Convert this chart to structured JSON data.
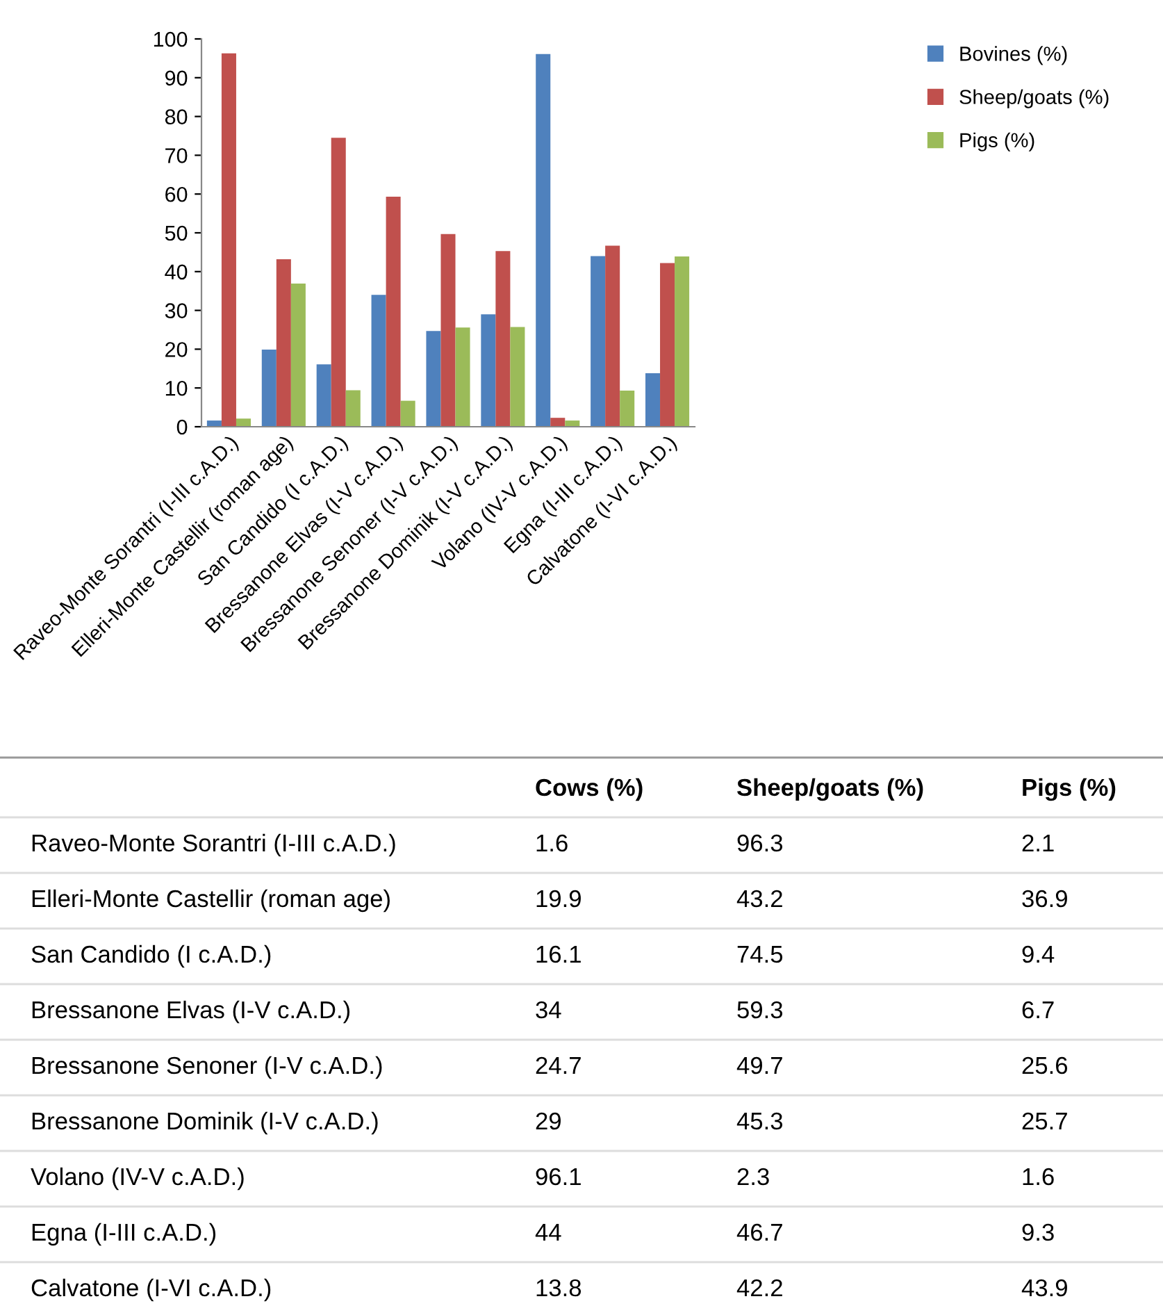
{
  "chart_data": [
    {
      "type": "bar",
      "categories": [
        "Raveo-Monte Sorantri (I-III c.A.D.)",
        "Elleri-Monte Castellir (roman age)",
        "San Candido (I c.A.D.)",
        "Bressanone Elvas (I-V c.A.D.)",
        "Bressanone Senoner (I-V c.A.D.)",
        "Bressanone Dominik (I-V c.A.D.)",
        "Volano (IV-V c.A.D.)",
        "Egna (I-III c.A.D.)",
        "Calvatone (I-VI c.A.D.)"
      ],
      "series": [
        {
          "name": "Bovines (%)",
          "color": "#4f81bd",
          "values": [
            1.6,
            19.9,
            16.1,
            34,
            24.7,
            29,
            96.1,
            44,
            13.8
          ]
        },
        {
          "name": "Sheep/goats (%)",
          "color": "#c0504d",
          "values": [
            96.3,
            43.2,
            74.5,
            59.3,
            49.7,
            45.3,
            2.3,
            46.7,
            42.2
          ]
        },
        {
          "name": "Pigs (%)",
          "color": "#9bbb59",
          "values": [
            2.1,
            36.9,
            9.4,
            6.7,
            25.6,
            25.7,
            1.6,
            9.3,
            43.9
          ]
        }
      ],
      "ylim": [
        0,
        100
      ],
      "yticks": [
        0,
        10,
        20,
        30,
        40,
        50,
        60,
        70,
        80,
        90,
        100
      ],
      "grid": false,
      "legend": "top right"
    },
    {
      "type": "other",
      "categories": [
        "Raveo-Monte Sorantri (I-III c.A.D.)",
        "Elleri-Monte Castellir (roman age)",
        "San Candido (I c.A.D.)",
        "Bressanone Elvas (I-V c.A.D.)",
        "Bressanone Senoner (I-V c.A.D.)",
        "Bressanone Dominik (I-V c.A.D.)",
        "Volano (IV-V c.A.D.)",
        "Egna (I-III c.A.D.)",
        "Calvatone (I-VI c.A.D.)"
      ],
      "series": [
        {
          "name": "Cows (%)",
          "values": [
            1.6,
            19.9,
            16.1,
            34,
            24.7,
            29,
            96.1,
            44,
            13.8
          ]
        },
        {
          "name": "Sheep/goats (%)",
          "values": [
            96.3,
            43.2,
            74.5,
            59.3,
            49.7,
            45.3,
            2.3,
            46.7,
            42.2
          ]
        },
        {
          "name": "Pigs (%)",
          "values": [
            2.1,
            36.9,
            9.4,
            6.7,
            25.6,
            25.7,
            1.6,
            9.3,
            43.9
          ]
        }
      ],
      "data_labels": true
    }
  ]
}
